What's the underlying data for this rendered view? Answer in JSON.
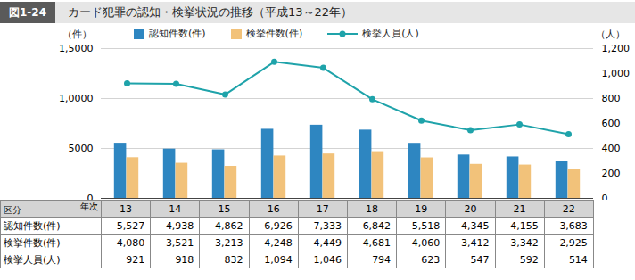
{
  "chart_data": {
    "type": "bar",
    "figure_label": "図1-24",
    "title": "カード犯罪の認知・検挙状況の推移（平成13～22年）",
    "y_label": "（件）",
    "y2_label": "（人）",
    "table_header": {
      "row": "区分",
      "col": "年次"
    },
    "categories": [
      "13",
      "14",
      "15",
      "16",
      "17",
      "18",
      "19",
      "20",
      "21",
      "22"
    ],
    "ylim": [
      0,
      15000
    ],
    "yticks": [
      0,
      5000,
      {
        "value": 10000,
        "label": "1,0000"
      },
      {
        "value": 15000,
        "label": "1,5000"
      }
    ],
    "y2lim": [
      0,
      1200
    ],
    "y2ticks": [
      0,
      200,
      400,
      600,
      800,
      {
        "value": 1000,
        "label": "1,000"
      },
      {
        "value": 1200,
        "label": "1,200"
      }
    ],
    "grid": true,
    "legend": "top",
    "series": [
      {
        "name": "認知件数(件)",
        "color": "#2e86c1",
        "type": "bar",
        "values": [
          5527,
          4938,
          4862,
          6926,
          7333,
          6842,
          5518,
          4345,
          4155,
          3683
        ],
        "value_labels": [
          "5,527",
          "4,938",
          "4,862",
          "6,926",
          "7,333",
          "6,842",
          "5,518",
          "4,345",
          "4,155",
          "3,683"
        ]
      },
      {
        "name": "検挙件数(件)",
        "color": "#f2c27a",
        "type": "bar",
        "values": [
          4080,
          3521,
          3213,
          4248,
          4449,
          4681,
          4060,
          3412,
          3342,
          2925
        ],
        "value_labels": [
          "4,080",
          "3,521",
          "3,213",
          "4,248",
          "4,449",
          "4,681",
          "4,060",
          "3,412",
          "3,342",
          "2,925"
        ]
      },
      {
        "name": "検挙人員(人)",
        "color": "#1fa3aa",
        "type": "line",
        "marker": "circle",
        "axis": "y2",
        "values": [
          921,
          918,
          832,
          1094,
          1046,
          794,
          623,
          547,
          592,
          514
        ],
        "value_labels": [
          "921",
          "918",
          "832",
          "1,094",
          "1,046",
          "794",
          "623",
          "547",
          "592",
          "514"
        ]
      }
    ]
  }
}
